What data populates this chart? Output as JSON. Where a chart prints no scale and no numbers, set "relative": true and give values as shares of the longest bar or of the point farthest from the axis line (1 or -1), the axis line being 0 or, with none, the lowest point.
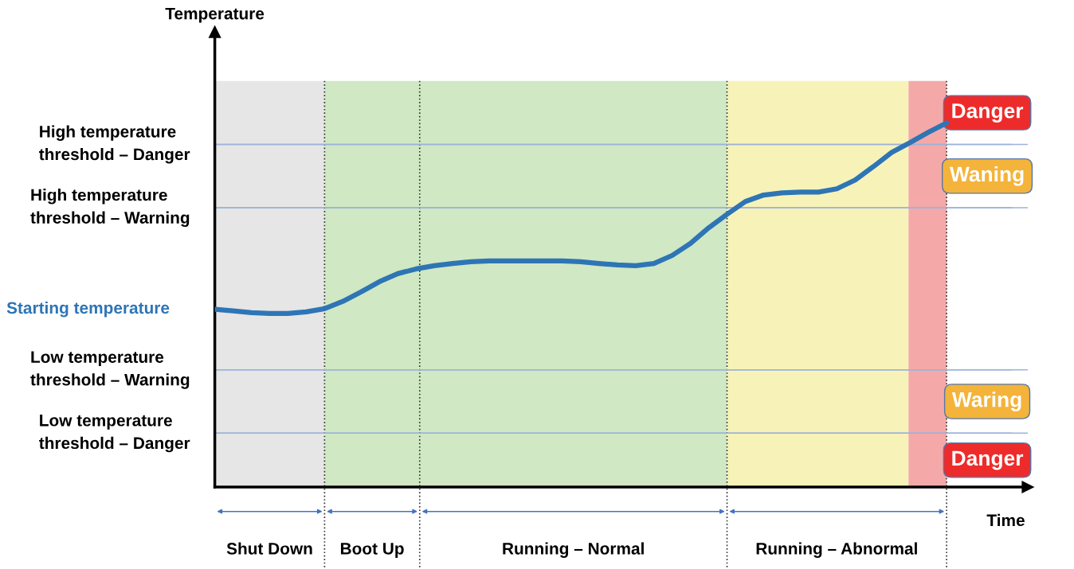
{
  "chart_data": {
    "type": "line",
    "relative": true,
    "xlabel": "Time",
    "grid": true,
    "categories": [
      null,
      null,
      null,
      null,
      null,
      null,
      null,
      null,
      null,
      null,
      null,
      null,
      null,
      null,
      null,
      null,
      null,
      null,
      null,
      null,
      null,
      null,
      null,
      null,
      null,
      null,
      null,
      null,
      null,
      null,
      null,
      null,
      null,
      null,
      null,
      null,
      null,
      null,
      null,
      null,
      null
    ],
    "series": [
      {
        "color": "#2e75b6",
        "values": [
          0.488,
          0.484,
          0.479,
          0.477,
          0.477,
          0.481,
          0.49,
          0.51,
          0.536,
          0.564,
          0.586,
          0.599,
          0.608,
          0.614,
          0.619,
          0.621,
          0.621,
          0.621,
          0.621,
          0.621,
          0.619,
          0.614,
          0.61,
          0.608,
          0.614,
          0.636,
          0.669,
          0.712,
          0.749,
          0.784,
          0.802,
          0.808,
          0.81,
          0.81,
          0.819,
          0.843,
          0.88,
          0.919,
          0.946,
          0.974,
          1.0
        ]
      }
    ],
    "ref_lines": [
      {
        "axis": "y",
        "value": 0.941,
        "label": "High temperature\nthreshold – Danger",
        "color": "#9db3d9"
      },
      {
        "axis": "y",
        "value": 0.767,
        "label": "High temperature\nthreshold – Warning",
        "color": "#9db3d9"
      },
      {
        "axis": "y",
        "value": 0.322,
        "label": "Low temperature\nthreshold – Warning",
        "color": "#9db3d9"
      },
      {
        "axis": "y",
        "value": 0.148,
        "label": "Low temperature\nthreshold – Danger",
        "color": "#9db3d9"
      }
    ],
    "annotations": [
      "Starting temperature",
      "Temperature",
      "Shut Down",
      "Boot Up",
      "Running – Normal",
      "Running – Abnormal",
      "Danger",
      "Waning",
      "Waring",
      "Danger"
    ]
  }
}
